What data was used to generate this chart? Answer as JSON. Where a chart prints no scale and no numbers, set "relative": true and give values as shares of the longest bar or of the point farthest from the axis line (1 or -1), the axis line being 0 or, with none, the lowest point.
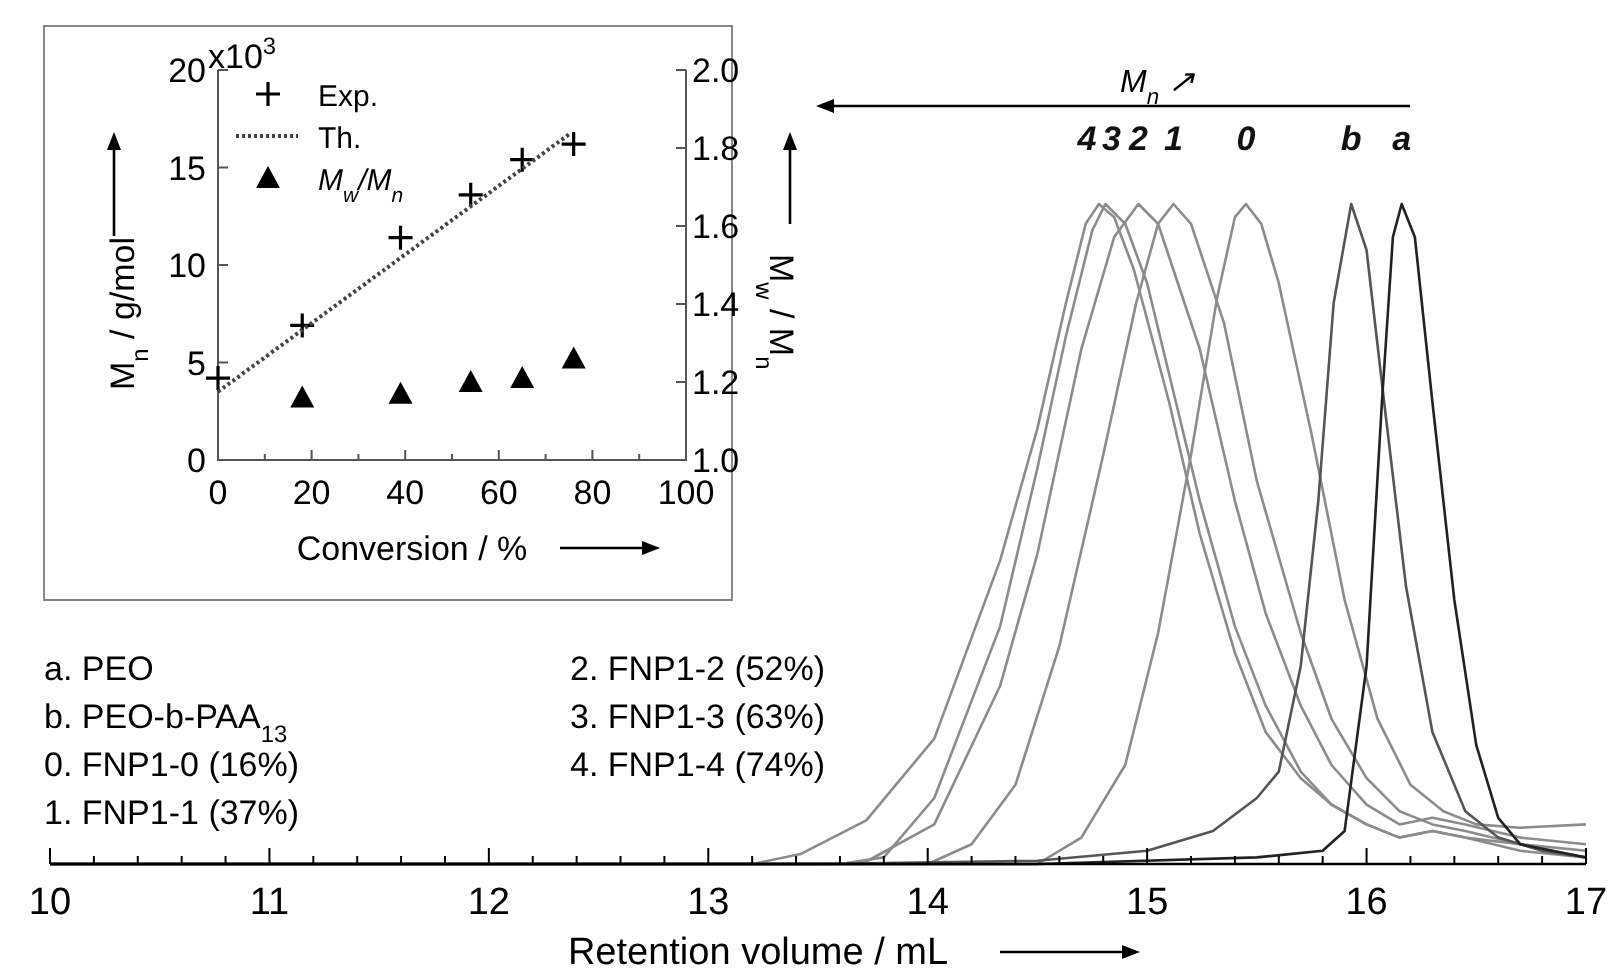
{
  "chart_data": [
    {
      "type": "line",
      "relative": true,
      "xlabel": "Retention volume / mL",
      "xlim": [
        10,
        17
      ],
      "xticks": [
        10,
        {
          "value": 10.2,
          "label": null
        },
        {
          "value": 10.4,
          "label": null
        },
        {
          "value": 10.6,
          "label": null
        },
        {
          "value": 10.8,
          "label": null
        },
        11,
        {
          "value": 11.2,
          "label": null
        },
        {
          "value": 11.4,
          "label": null
        },
        {
          "value": 11.6,
          "label": null
        },
        {
          "value": 11.8,
          "label": null
        },
        12,
        {
          "value": 12.2,
          "label": null
        },
        {
          "value": 12.4,
          "label": null
        },
        {
          "value": 12.6,
          "label": null
        },
        {
          "value": 12.8,
          "label": null
        },
        13,
        {
          "value": 13.2,
          "label": null
        },
        {
          "value": 13.4,
          "label": null
        },
        {
          "value": 13.6,
          "label": null
        },
        {
          "value": 13.8,
          "label": null
        },
        14,
        {
          "value": 14.2,
          "label": null
        },
        {
          "value": 14.4,
          "label": null
        },
        {
          "value": 14.6,
          "label": null
        },
        {
          "value": 14.8,
          "label": null
        },
        15,
        {
          "value": 15.2,
          "label": null
        },
        {
          "value": 15.4,
          "label": null
        },
        {
          "value": 15.6,
          "label": null
        },
        {
          "value": 15.8,
          "label": null
        },
        16,
        {
          "value": 16.2,
          "label": null
        },
        {
          "value": 16.4,
          "label": null
        },
        {
          "value": 16.6,
          "label": null
        },
        {
          "value": 16.8,
          "label": null
        },
        17
      ],
      "tick_labels": "x",
      "grid": false,
      "legend": false,
      "marker": "none",
      "line_style": "solid",
      "annotations": [
        "a. PEO",
        "b. PEO-b-PAA$_{13}$",
        "0. FNP1-0 (16%)",
        "1. FNP1-1 (37%)",
        "2. FNP1-2 (52%)",
        "3. FNP1-3 (63%)",
        "4. FNP1-4 (74%)",
        "M$_{n}$ ↗"
      ],
      "series": [
        {
          "name": "4",
          "color": "#8c8c8c",
          "x": [
            10,
            13.2,
            13.42,
            13.72,
            14.03,
            14.33,
            14.5,
            14.63,
            14.72,
            14.78,
            14.85,
            14.94,
            15.1,
            15.24,
            15.4,
            15.54,
            15.7,
            15.84,
            16,
            16.15,
            16.3,
            16.45,
            16.7,
            17
          ],
          "values": [
            0,
            0,
            0.015,
            0.066,
            0.19,
            0.46,
            0.66,
            0.85,
            0.97,
            1,
            0.98,
            0.9,
            0.7,
            0.5,
            0.32,
            0.2,
            0.13,
            0.09,
            0.06,
            0.04,
            0.05,
            0.04,
            0.02,
            0.01
          ]
        },
        {
          "name": "3",
          "color": "#8c8c8c",
          "x": [
            10,
            13.6,
            13.8,
            14.03,
            14.33,
            14.5,
            14.63,
            14.75,
            14.81,
            14.9,
            15,
            15.24,
            15.4,
            15.54,
            15.7,
            15.84,
            16,
            16.15,
            16.3,
            16.45,
            16.7,
            17
          ],
          "values": [
            0,
            0,
            0.01,
            0.1,
            0.36,
            0.6,
            0.8,
            0.96,
            1,
            0.97,
            0.88,
            0.55,
            0.36,
            0.24,
            0.14,
            0.09,
            0.06,
            0.04,
            0.05,
            0.04,
            0.03,
            0.02
          ]
        },
        {
          "name": "2",
          "color": "#8c8c8c",
          "x": [
            10,
            13.7,
            14.03,
            14.33,
            14.5,
            14.7,
            14.85,
            14.96,
            15.05,
            15.24,
            15.4,
            15.54,
            15.7,
            15.84,
            16,
            16.15,
            16.3,
            16.45,
            16.7,
            17
          ],
          "values": [
            0,
            0,
            0.06,
            0.27,
            0.47,
            0.78,
            0.95,
            1,
            0.97,
            0.78,
            0.55,
            0.38,
            0.24,
            0.15,
            0.09,
            0.06,
            0.07,
            0.06,
            0.04,
            0.03
          ]
        },
        {
          "name": "1",
          "color": "#8c8c8c",
          "x": [
            10,
            14,
            14.2,
            14.4,
            14.6,
            14.8,
            14.95,
            15.05,
            15.12,
            15.2,
            15.35,
            15.5,
            15.7,
            15.84,
            16,
            16.15,
            16.3,
            16.45,
            16.7,
            17
          ],
          "values": [
            0,
            0,
            0.03,
            0.12,
            0.33,
            0.62,
            0.85,
            0.97,
            1,
            0.97,
            0.82,
            0.58,
            0.35,
            0.22,
            0.13,
            0.08,
            0.06,
            0.05,
            0.03,
            0.01
          ]
        },
        {
          "name": "0",
          "color": "#8c8c8c",
          "x": [
            10,
            14.5,
            14.7,
            14.9,
            15.05,
            15.2,
            15.32,
            15.4,
            15.45,
            15.52,
            15.6,
            15.75,
            15.9,
            16.05,
            16.2,
            16.35,
            16.5,
            16.7,
            17
          ],
          "values": [
            0,
            0,
            0.04,
            0.15,
            0.35,
            0.62,
            0.86,
            0.98,
            1,
            0.97,
            0.88,
            0.65,
            0.4,
            0.22,
            0.12,
            0.08,
            0.06,
            0.055,
            0.06
          ]
        },
        {
          "name": "b",
          "color": "#555555",
          "x": [
            10,
            13.5,
            14.5,
            15,
            15.3,
            15.5,
            15.6,
            15.7,
            15.78,
            15.85,
            15.93,
            16,
            16.08,
            16.18,
            16.3,
            16.45,
            16.6,
            16.8,
            17
          ],
          "values": [
            0,
            0,
            0.005,
            0.02,
            0.05,
            0.1,
            0.14,
            0.3,
            0.55,
            0.85,
            1,
            0.93,
            0.7,
            0.42,
            0.2,
            0.08,
            0.04,
            0.02,
            0.01
          ]
        },
        {
          "name": "a",
          "color": "#222222",
          "x": [
            10,
            14.5,
            15.5,
            15.8,
            15.9,
            16,
            16.07,
            16.12,
            16.16,
            16.22,
            16.3,
            16.4,
            16.5,
            16.6,
            16.7,
            17
          ],
          "values": [
            0,
            0,
            0.01,
            0.02,
            0.05,
            0.3,
            0.7,
            0.95,
            1,
            0.95,
            0.7,
            0.4,
            0.18,
            0.07,
            0.03,
            0.01
          ]
        }
      ]
    },
    {
      "type": "scatter",
      "xlabel": "Conversion / %",
      "ylabel": "M$_{n}$ / g/mol",
      "y2label": "M$_{w}$ / M$_{n}$",
      "xlim": [
        0,
        100
      ],
      "xticks": [
        0,
        {
          "value": 10,
          "label": null
        },
        20,
        {
          "value": 30,
          "label": null
        },
        40,
        {
          "value": 50,
          "label": null
        },
        60,
        {
          "value": 70,
          "label": null
        },
        80,
        {
          "value": 90,
          "label": null
        },
        100
      ],
      "ylim": [
        0,
        20
      ],
      "yticks": [
        0,
        5,
        10,
        15,
        20
      ],
      "annotations": [
        "x10$^{3}$"
      ],
      "y2lim": [
        1,
        2
      ],
      "y2ticks": [
        {
          "value": 1,
          "label": "1.0"
        },
        1.2,
        1.4,
        1.6,
        1.8,
        {
          "value": 2,
          "label": "2.0"
        }
      ],
      "grid": false,
      "legend": "top left",
      "series": [
        {
          "name": "Exp.",
          "marker": "cross",
          "color": "#000000",
          "x": [
            0,
            18,
            39,
            54,
            65,
            76
          ],
          "values": [
            4.2,
            6.9,
            11.4,
            13.6,
            15.4,
            16.2
          ]
        },
        {
          "name": "Th.",
          "type": "line",
          "line_style": "dotted",
          "color": "#444444",
          "x": [
            0,
            75
          ],
          "values": [
            3.5,
            16.7
          ]
        },
        {
          "name": "M$_{w}$/M$_{n}$",
          "marker": "triangle",
          "axis": "y2",
          "color": "#000000",
          "x": [
            18,
            39,
            54,
            65,
            76
          ],
          "values": [
            1.16,
            1.17,
            1.2,
            1.21,
            1.26
          ]
        }
      ]
    }
  ]
}
